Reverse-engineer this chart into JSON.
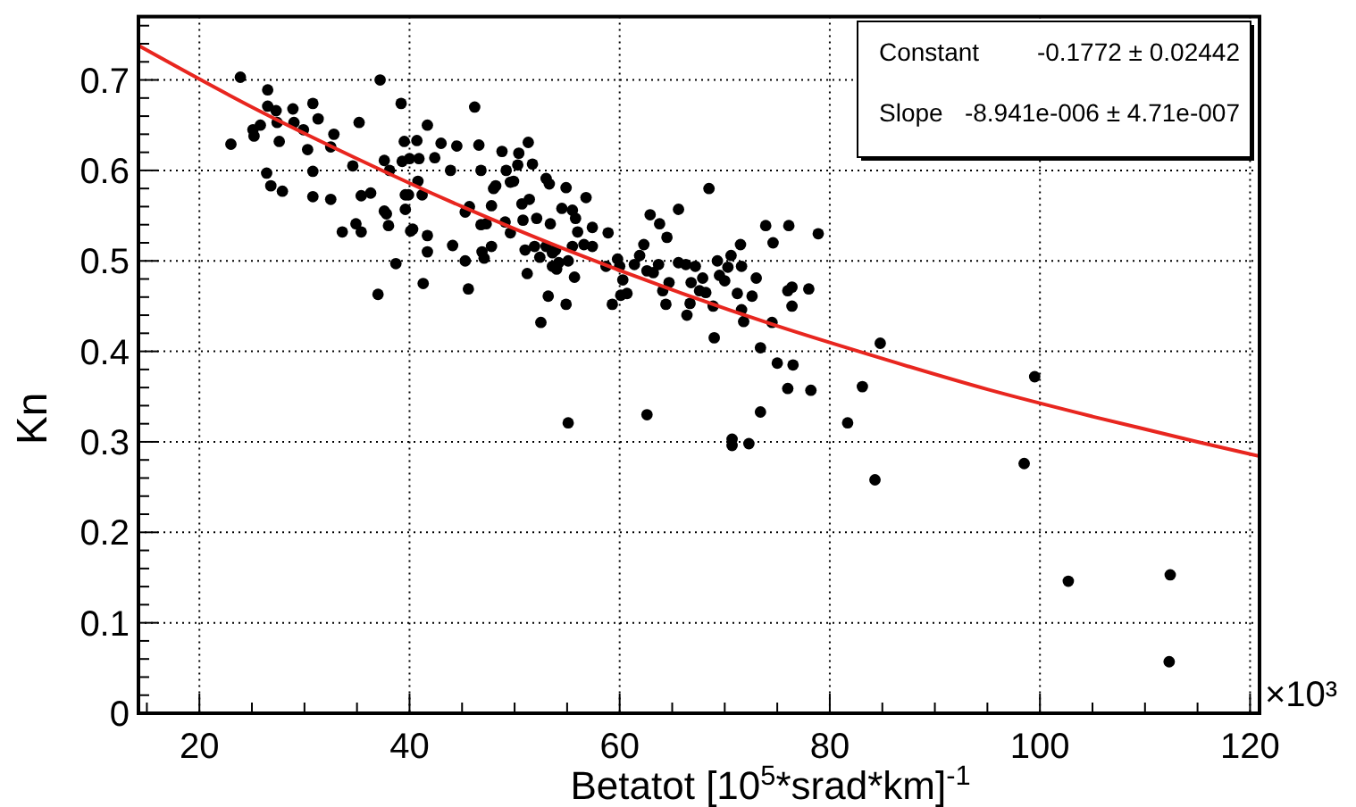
{
  "chart_data": {
    "type": "scatter",
    "xlabel": "Betatot [10$^{5}$*srad*km]$^{-1}$",
    "ylabel": "Kn",
    "annotations": [
      "Constant -0.1772 ± 0.02442",
      "Slope -8.941e-006 ± 4.71e-007",
      "×10³"
    ],
    "xlim": [
      14.2,
      120.9
    ],
    "ylim": [
      0,
      0.77
    ],
    "xticks": [
      {
        "value": 15,
        "label": null
      },
      20,
      {
        "value": 25,
        "label": null
      },
      {
        "value": 30,
        "label": null
      },
      {
        "value": 35,
        "label": null
      },
      40,
      {
        "value": 45,
        "label": null
      },
      {
        "value": 50,
        "label": null
      },
      {
        "value": 55,
        "label": null
      },
      60,
      {
        "value": 65,
        "label": null
      },
      {
        "value": 70,
        "label": null
      },
      {
        "value": 75,
        "label": null
      },
      80,
      {
        "value": 85,
        "label": null
      },
      {
        "value": 90,
        "label": null
      },
      {
        "value": 95,
        "label": null
      },
      100,
      {
        "value": 105,
        "label": null
      },
      {
        "value": 110,
        "label": null
      },
      {
        "value": 115,
        "label": null
      },
      120
    ],
    "yticks": [
      0,
      {
        "value": 0.02,
        "label": null
      },
      {
        "value": 0.04,
        "label": null
      },
      {
        "value": 0.06,
        "label": null
      },
      {
        "value": 0.08,
        "label": null
      },
      0.1,
      {
        "value": 0.12,
        "label": null
      },
      {
        "value": 0.14,
        "label": null
      },
      {
        "value": 0.16,
        "label": null
      },
      {
        "value": 0.18,
        "label": null
      },
      0.2,
      {
        "value": 0.22,
        "label": null
      },
      {
        "value": 0.24,
        "label": null
      },
      {
        "value": 0.26,
        "label": null
      },
      {
        "value": 0.28,
        "label": null
      },
      0.3,
      {
        "value": 0.32,
        "label": null
      },
      {
        "value": 0.34,
        "label": null
      },
      {
        "value": 0.36,
        "label": null
      },
      {
        "value": 0.38,
        "label": null
      },
      0.4,
      {
        "value": 0.42,
        "label": null
      },
      {
        "value": 0.44,
        "label": null
      },
      {
        "value": 0.46,
        "label": null
      },
      {
        "value": 0.48,
        "label": null
      },
      0.5,
      {
        "value": 0.52,
        "label": null
      },
      {
        "value": 0.54,
        "label": null
      },
      {
        "value": 0.56,
        "label": null
      },
      {
        "value": 0.58,
        "label": null
      },
      0.6,
      {
        "value": 0.62,
        "label": null
      },
      {
        "value": 0.64,
        "label": null
      },
      {
        "value": 0.66,
        "label": null
      },
      {
        "value": 0.68,
        "label": null
      },
      0.7,
      {
        "value": 0.72,
        "label": null
      },
      {
        "value": 0.74,
        "label": null
      },
      {
        "value": 0.76,
        "label": null
      }
    ],
    "grid": true,
    "marker": "circle",
    "series": [
      {
        "color": "#000000",
        "x": [
          23.0,
          23.9,
          25.1,
          25.2,
          25.8,
          26.5,
          26.5,
          27.3,
          27.4,
          27.6,
          26.4,
          26.8,
          27.9,
          28.9,
          29.0,
          29.9,
          30.3,
          30.8,
          30.8,
          31.3,
          30.8,
          32.5,
          32.5,
          32.8,
          33.6,
          34.6,
          34.9,
          35.2,
          35.4,
          35.4,
          36.3,
          37.0,
          37.2,
          37.6,
          37.6,
          37.8,
          38.0,
          38.1,
          38.7,
          39.2,
          39.3,
          39.5,
          39.6,
          39.6,
          39.9,
          40.1,
          40.3,
          40.7,
          40.8,
          41.2,
          41.3,
          41.7,
          41.7,
          41.7,
          40.0,
          40.9,
          42.4,
          43.0,
          43.9,
          44.1,
          44.5,
          45.3,
          45.3,
          45.7,
          45.6,
          46.2,
          46.6,
          46.8,
          46.9,
          47.1,
          46.8,
          47.3,
          47.8,
          48.0,
          48.2,
          47.8,
          48.8,
          49.1,
          49.2,
          49.6,
          49.6,
          49.9,
          50.3,
          50.4,
          51.3,
          51.7,
          50.7,
          50.8,
          51.0,
          51.2,
          51.4,
          52.1,
          51.9,
          52.4,
          52.5,
          53.0,
          53.3,
          53.4,
          53.0,
          53.6,
          53.9,
          53.2,
          53.6,
          54.0,
          54.2,
          54.5,
          54.9,
          54.9,
          55.1,
          55.1,
          55.5,
          55.8,
          56.0,
          55.5,
          55.7,
          56.8,
          56.6,
          57.4,
          57.4,
          58.7,
          58.9,
          59.3,
          59.8,
          60.0,
          60.3,
          60.1,
          60.7,
          61.4,
          61.9,
          62.3,
          62.6,
          62.9,
          63.2,
          62.6,
          63.7,
          63.8,
          64.4,
          64.5,
          64.7,
          64.1,
          65.6,
          65.6,
          66.3,
          66.4,
          66.7,
          66.8,
          67.2,
          67.6,
          67.9,
          68.2,
          68.5,
          68.9,
          69.0,
          69.3,
          69.5,
          70.0,
          70.3,
          70.6,
          70.7,
          70.7,
          71.2,
          71.5,
          71.6,
          71.6,
          71.8,
          72.3,
          72.6,
          73.0,
          73.4,
          73.4,
          73.9,
          74.5,
          74.6,
          75.0,
          76.0,
          76.1,
          76.4,
          76.4,
          76.0,
          76.5,
          78.0,
          78.2,
          78.9,
          84.8,
          83.1,
          81.7,
          84.3,
          99.5,
          98.5,
          102.7,
          112.4,
          112.3
        ],
        "values": [
          0.629,
          0.703,
          0.645,
          0.638,
          0.65,
          0.689,
          0.671,
          0.666,
          0.653,
          0.632,
          0.597,
          0.583,
          0.577,
          0.668,
          0.653,
          0.645,
          0.623,
          0.674,
          0.599,
          0.657,
          0.571,
          0.568,
          0.626,
          0.64,
          0.532,
          0.605,
          0.541,
          0.653,
          0.572,
          0.532,
          0.575,
          0.463,
          0.7,
          0.611,
          0.555,
          0.552,
          0.539,
          0.6,
          0.497,
          0.674,
          0.61,
          0.632,
          0.573,
          0.557,
          0.573,
          0.533,
          0.535,
          0.633,
          0.588,
          0.573,
          0.475,
          0.65,
          0.528,
          0.51,
          0.613,
          0.613,
          0.614,
          0.63,
          0.6,
          0.517,
          0.627,
          0.5,
          0.554,
          0.56,
          0.469,
          0.67,
          0.628,
          0.6,
          0.51,
          0.503,
          0.54,
          0.541,
          0.516,
          0.58,
          0.583,
          0.561,
          0.621,
          0.543,
          0.6,
          0.587,
          0.531,
          0.588,
          0.606,
          0.619,
          0.631,
          0.607,
          0.563,
          0.545,
          0.512,
          0.486,
          0.568,
          0.547,
          0.516,
          0.504,
          0.432,
          0.591,
          0.585,
          0.541,
          0.516,
          0.509,
          0.512,
          0.461,
          0.494,
          0.491,
          0.498,
          0.558,
          0.581,
          0.452,
          0.5,
          0.321,
          0.556,
          0.547,
          0.532,
          0.516,
          0.482,
          0.57,
          0.518,
          0.537,
          0.516,
          0.494,
          0.531,
          0.452,
          0.502,
          0.494,
          0.479,
          0.462,
          0.464,
          0.496,
          0.506,
          0.518,
          0.489,
          0.551,
          0.487,
          0.33,
          0.496,
          0.541,
          0.452,
          0.526,
          0.476,
          0.467,
          0.557,
          0.498,
          0.496,
          0.44,
          0.453,
          0.476,
          0.494,
          0.467,
          0.481,
          0.465,
          0.58,
          0.45,
          0.415,
          0.5,
          0.484,
          0.478,
          0.493,
          0.506,
          0.303,
          0.296,
          0.464,
          0.518,
          0.494,
          0.446,
          0.433,
          0.298,
          0.461,
          0.481,
          0.404,
          0.333,
          0.539,
          0.432,
          0.52,
          0.387,
          0.467,
          0.539,
          0.471,
          0.45,
          0.359,
          0.385,
          0.469,
          0.357,
          0.53,
          0.409,
          0.361,
          0.321,
          0.258,
          0.372,
          0.276,
          0.146,
          0.153,
          0.057
        ]
      },
      {
        "type": "line",
        "color": "#e8261f",
        "marker": "none",
        "line_style": "solid",
        "x": [
          14.2,
          25,
          35,
          45,
          55,
          65,
          75,
          85,
          95,
          105,
          115,
          120.9
        ],
        "values": [
          0.738,
          0.67,
          0.613,
          0.56,
          0.512,
          0.468,
          0.428,
          0.392,
          0.358,
          0.328,
          0.3,
          0.284
        ]
      }
    ]
  }
}
